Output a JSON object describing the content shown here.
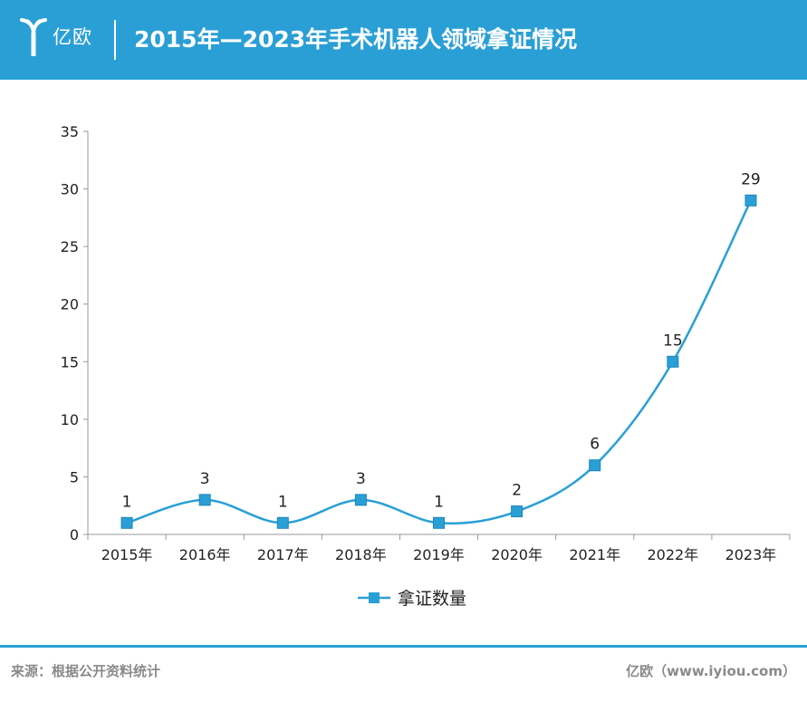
{
  "header": {
    "logo_text": "亿欧",
    "title": "2015年—2023年手术机器人领域拿证情况"
  },
  "colors": {
    "brand": "#2a9fd6",
    "series": "#2a9fd6",
    "axis": "#999999",
    "text": "#222222",
    "footer_text": "#8a8a8a"
  },
  "icons": {
    "logo": "yiou-logo-icon"
  },
  "chart_data": {
    "type": "line",
    "smooth": true,
    "categories": [
      "2015年",
      "2016年",
      "2017年",
      "2018年",
      "2019年",
      "2020年",
      "2021年",
      "2022年",
      "2023年"
    ],
    "series": [
      {
        "name": "拿证数量",
        "values": [
          1,
          3,
          1,
          3,
          1,
          2,
          6,
          15,
          29
        ],
        "marker": "square"
      }
    ],
    "ylim": [
      0,
      35
    ],
    "yticks": [
      0,
      5,
      10,
      15,
      20,
      25,
      30,
      35
    ],
    "data_labels": true,
    "grid": false,
    "legend_position": "bottom-center"
  },
  "footer": {
    "source": "来源：根据公开资料统计",
    "credit": "亿欧（www.iyiou.com）"
  }
}
